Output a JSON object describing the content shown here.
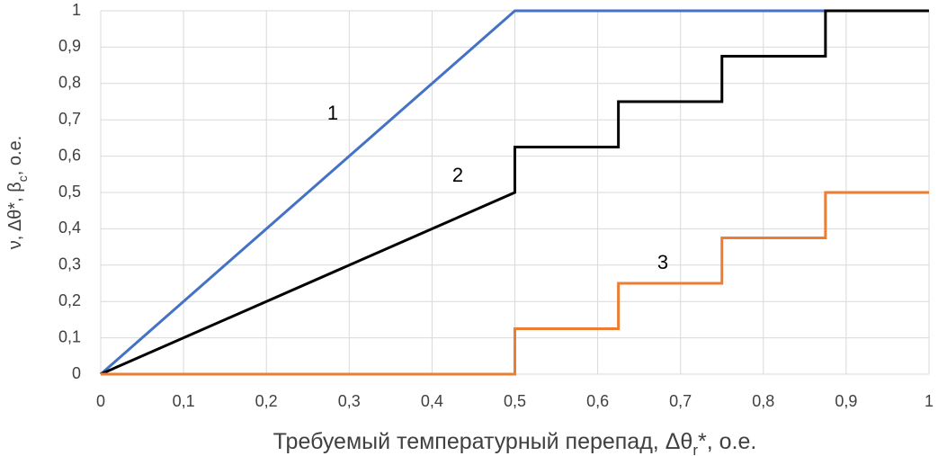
{
  "chart_data": {
    "type": "line",
    "x_label": [
      "Требуемый температурный перепад, Δθ",
      "r",
      "*, о.е."
    ],
    "y_label": [
      "ν, Δθ*, β",
      "c",
      ", о.е."
    ],
    "annotations": [
      "1",
      "2",
      "3"
    ],
    "xlim": [
      0,
      1
    ],
    "ylim": [
      0,
      1
    ],
    "xticks": [
      0,
      {
        "value": 0.1,
        "label": "0,1"
      },
      {
        "value": 0.2,
        "label": "0,2"
      },
      {
        "value": 0.3,
        "label": "0,3"
      },
      {
        "value": 0.4,
        "label": "0,4"
      },
      {
        "value": 0.5,
        "label": "0,5"
      },
      {
        "value": 0.6,
        "label": "0,6"
      },
      {
        "value": 0.7,
        "label": "0,7"
      },
      {
        "value": 0.8,
        "label": "0,8"
      },
      {
        "value": 0.9,
        "label": "0,9"
      },
      1
    ],
    "yticks": [
      0,
      {
        "value": 0.1,
        "label": "0,1"
      },
      {
        "value": 0.2,
        "label": "0,2"
      },
      {
        "value": 0.3,
        "label": "0,3"
      },
      {
        "value": 0.4,
        "label": "0,4"
      },
      {
        "value": 0.5,
        "label": "0,5"
      },
      {
        "value": 0.6,
        "label": "0,6"
      },
      {
        "value": 0.7,
        "label": "0,7"
      },
      {
        "value": 0.8,
        "label": "0,8"
      },
      {
        "value": 0.9,
        "label": "0,9"
      },
      1
    ],
    "grid": true,
    "series": [
      {
        "color": "#4472c4",
        "x": [
          0,
          0.5,
          1
        ],
        "values": [
          0,
          1,
          1
        ]
      },
      {
        "color": "#000000",
        "x": [
          0,
          0.5,
          0.5,
          0.625,
          0.625,
          0.75,
          0.75,
          0.875,
          0.875,
          1
        ],
        "values": [
          0,
          0.5,
          0.625,
          0.625,
          0.75,
          0.75,
          0.875,
          0.875,
          1,
          1
        ]
      },
      {
        "color": "#ed7d31",
        "x": [
          0,
          0.5,
          0.5,
          0.625,
          0.625,
          0.75,
          0.75,
          0.875,
          0.875,
          1
        ],
        "values": [
          0,
          0,
          0.125,
          0.125,
          0.25,
          0.25,
          0.375,
          0.375,
          0.5,
          0.5
        ]
      }
    ]
  }
}
